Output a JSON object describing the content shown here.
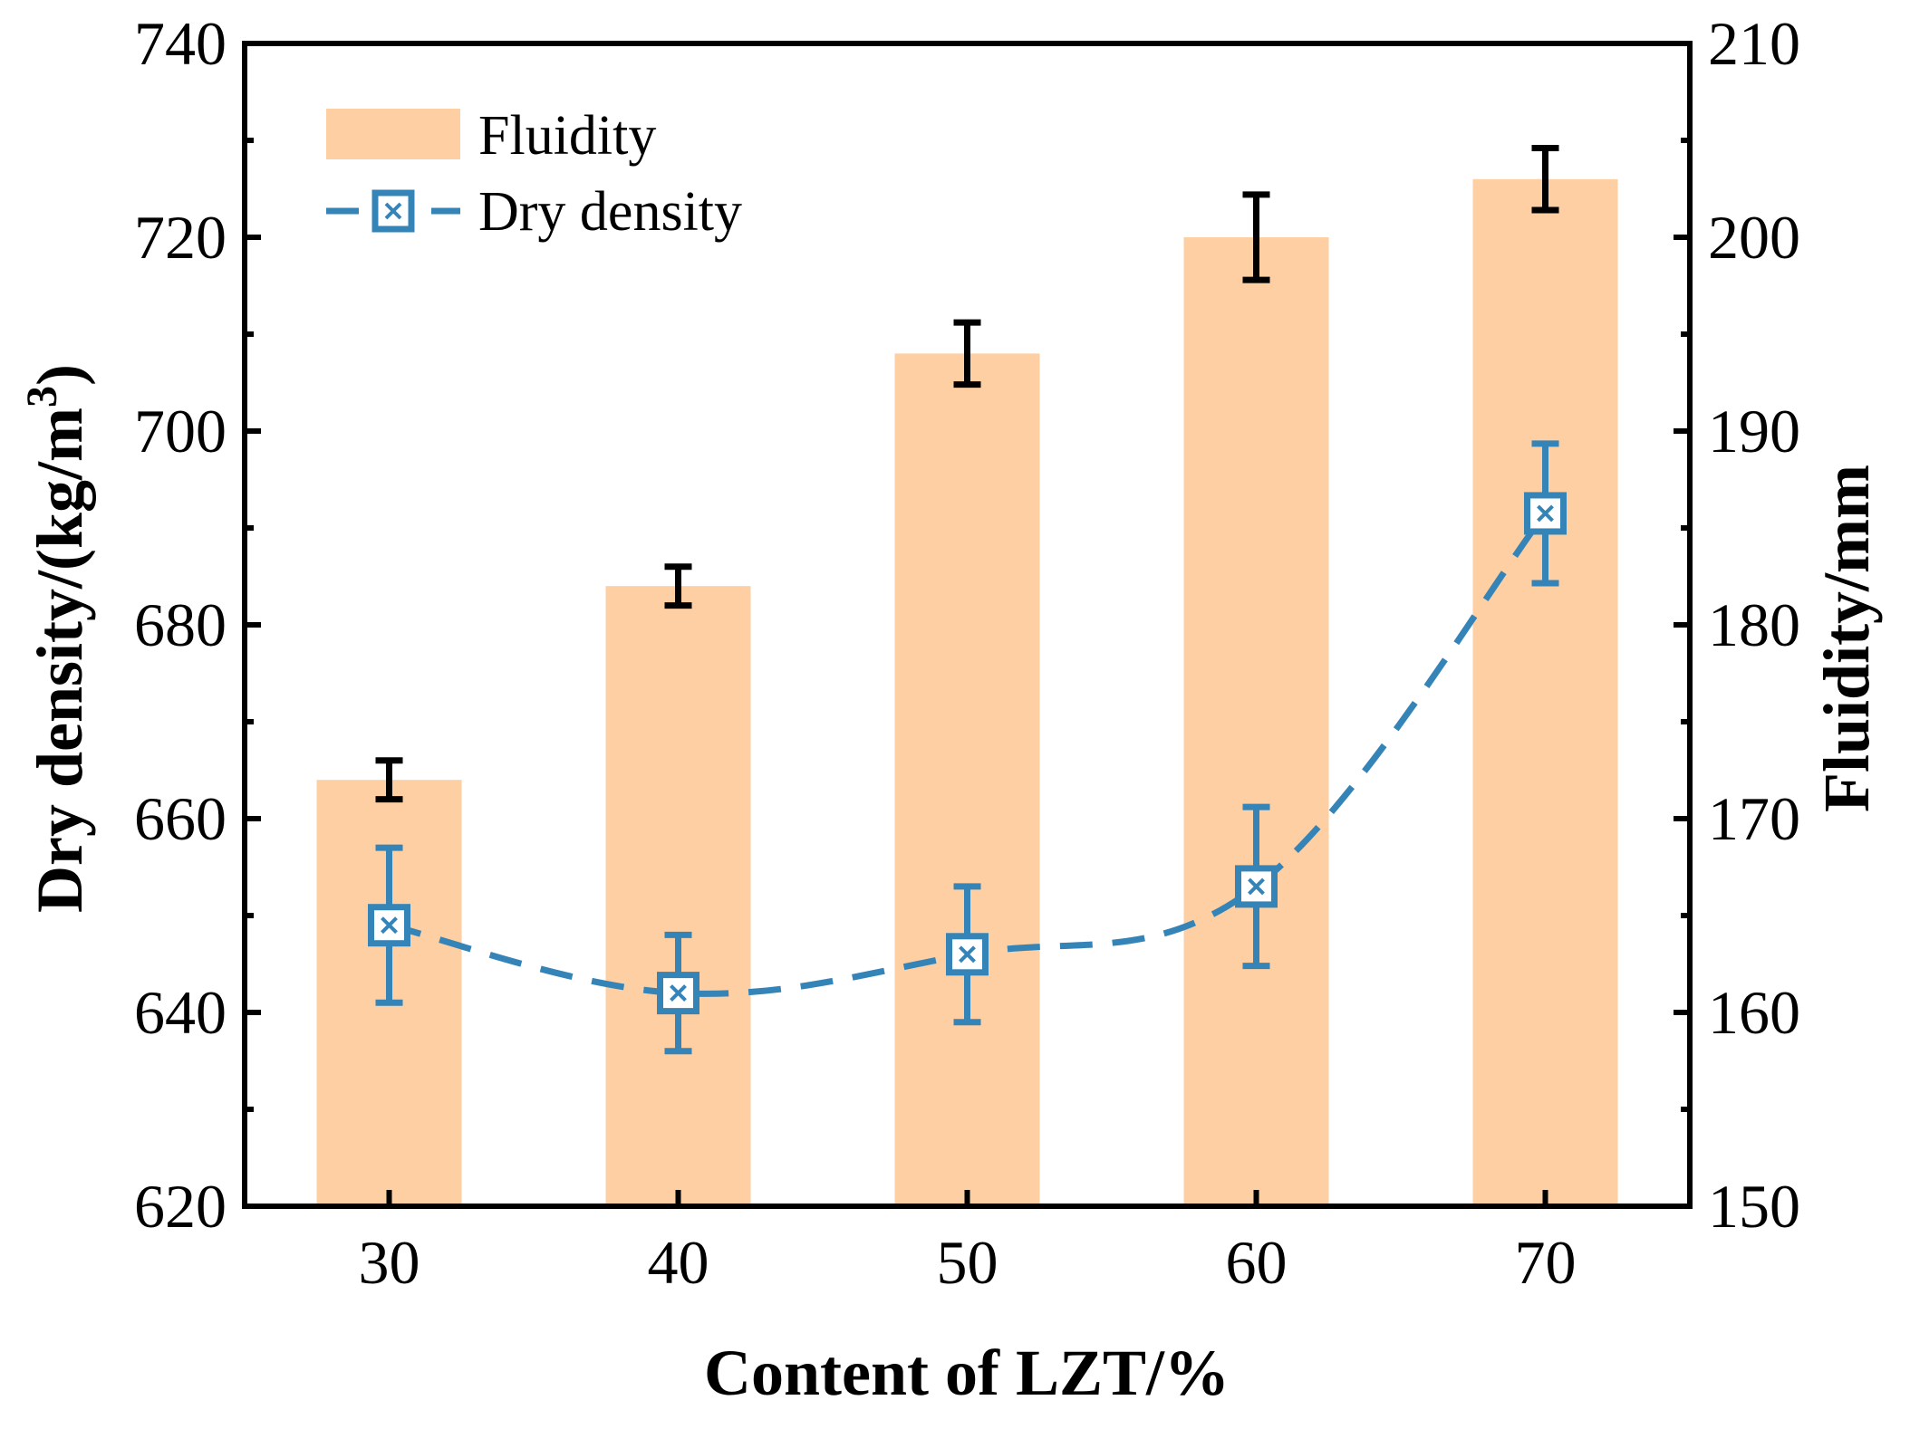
{
  "chart_data": {
    "type": "bar+line",
    "categories": [
      "30",
      "40",
      "50",
      "60",
      "70"
    ],
    "xlabel": "Content of  LZT/%",
    "ylabel_left": {
      "main": "Dry density/(kg/m",
      "sup": "3",
      "close": ")"
    },
    "ylabel_right": "Fluidity/mm",
    "left_axis": {
      "min": 620,
      "max": 740,
      "ticks": [
        620,
        640,
        660,
        680,
        700,
        720,
        740
      ]
    },
    "right_axis": {
      "min": 150,
      "max": 210,
      "ticks": [
        150,
        160,
        170,
        180,
        190,
        200,
        210
      ]
    },
    "series": [
      {
        "name": "Fluidity",
        "kind": "bar",
        "axis": "right",
        "color": "#FDCFA3",
        "error_color": "#000000",
        "values": [
          172,
          182,
          194,
          200,
          203
        ],
        "errors": [
          1,
          1,
          1.6,
          2.2,
          1.6
        ]
      },
      {
        "name": "Dry density",
        "kind": "line",
        "axis": "left",
        "color": "#3584B8",
        "line_style": "dashed",
        "marker": "square-x",
        "values": [
          649,
          642,
          646,
          653,
          691.5
        ],
        "errors": [
          8,
          6,
          7,
          8.2,
          7.2
        ]
      }
    ],
    "legend": {
      "position": "top-left",
      "items": [
        "Fluidity",
        "Dry density"
      ]
    }
  }
}
